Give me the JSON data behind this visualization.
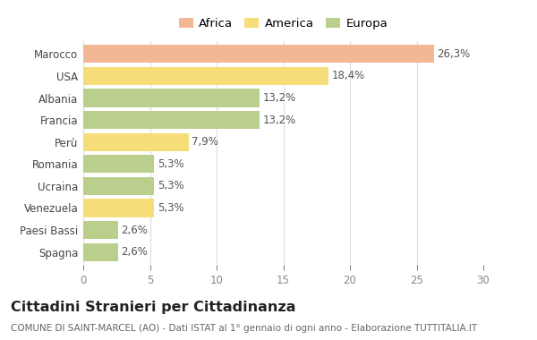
{
  "categories": [
    "Marocco",
    "USA",
    "Albania",
    "Francia",
    "Perù",
    "Romania",
    "Ucraina",
    "Venezuela",
    "Paesi Bassi",
    "Spagna"
  ],
  "values": [
    26.3,
    18.4,
    13.2,
    13.2,
    7.9,
    5.3,
    5.3,
    5.3,
    2.6,
    2.6
  ],
  "labels": [
    "26,3%",
    "18,4%",
    "13,2%",
    "13,2%",
    "7,9%",
    "5,3%",
    "5,3%",
    "5,3%",
    "2,6%",
    "2,6%"
  ],
  "colors": [
    "#F2B896",
    "#F7DC7A",
    "#BACF8C",
    "#BACF8C",
    "#F7DC7A",
    "#BACF8C",
    "#BACF8C",
    "#F7DC7A",
    "#BACF8C",
    "#BACF8C"
  ],
  "legend_labels": [
    "Africa",
    "America",
    "Europa"
  ],
  "legend_colors": [
    "#F2B896",
    "#F7DC7A",
    "#BACF8C"
  ],
  "title": "Cittadini Stranieri per Cittadinanza",
  "subtitle": "COMUNE DI SAINT-MARCEL (AO) - Dati ISTAT al 1° gennaio di ogni anno - Elaborazione TUTTITALIA.IT",
  "xlim": [
    0,
    30
  ],
  "xticks": [
    0,
    5,
    10,
    15,
    20,
    25,
    30
  ],
  "bg_color": "#FFFFFF",
  "grid_color": "#DDDDDD",
  "bar_height": 0.82,
  "label_fontsize": 8.5,
  "title_fontsize": 11.5,
  "subtitle_fontsize": 7.5,
  "tick_fontsize": 8.5,
  "ytick_fontsize": 8.5
}
